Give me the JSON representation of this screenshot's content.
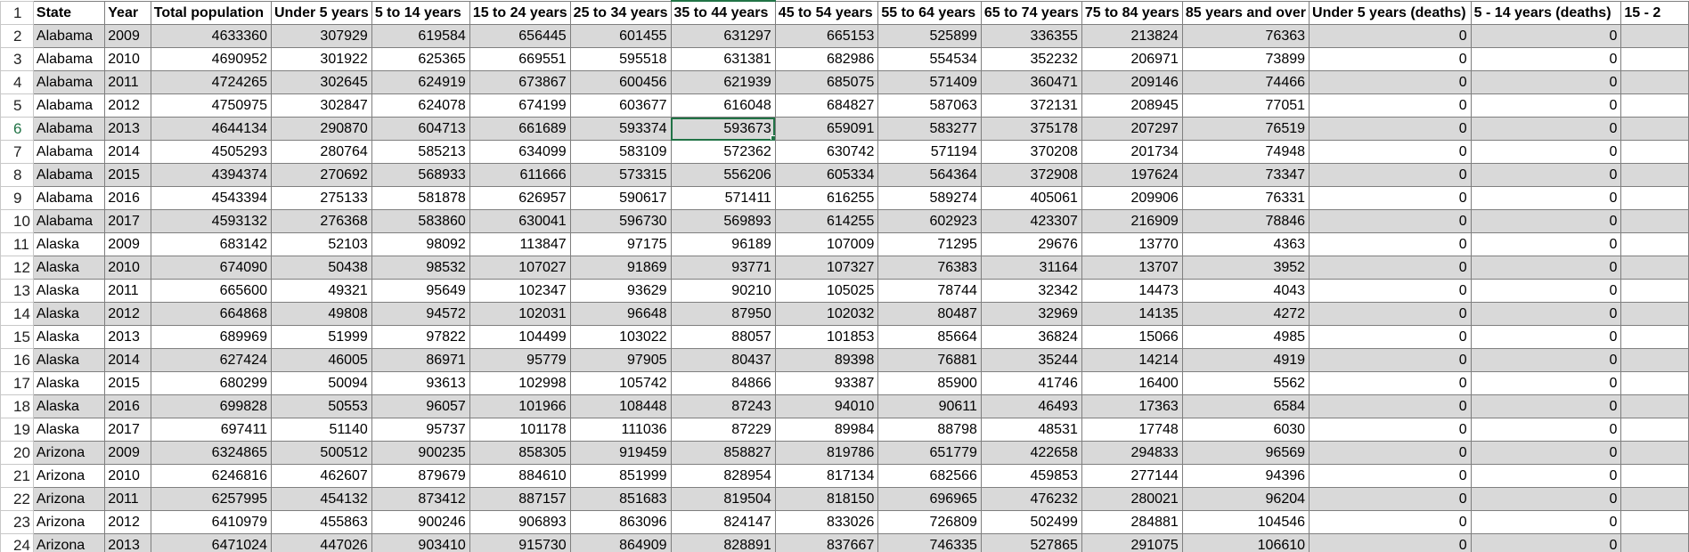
{
  "sheet": {
    "headers": [
      "State",
      "Year",
      "Total population",
      "Under 5 years",
      "5 to 14 years",
      "15 to 24 years",
      "25 to 34 years",
      "35 to 44 years",
      "45 to 54 years",
      "55 to 64 years",
      "65 to 74 years",
      "75 to 84 years",
      "85 years and over",
      "Under 5 years (deaths)",
      "5 - 14 years (deaths)",
      "15 - 2"
    ],
    "rows": [
      [
        "Alabama",
        "2009",
        "4633360",
        "307929",
        "619584",
        "656445",
        "601455",
        "631297",
        "665153",
        "525899",
        "336355",
        "213824",
        "76363",
        "0",
        "0",
        ""
      ],
      [
        "Alabama",
        "2010",
        "4690952",
        "301922",
        "625365",
        "669551",
        "595518",
        "631381",
        "682986",
        "554534",
        "352232",
        "206971",
        "73899",
        "0",
        "0",
        ""
      ],
      [
        "Alabama",
        "2011",
        "4724265",
        "302645",
        "624919",
        "673867",
        "600456",
        "621939",
        "685075",
        "571409",
        "360471",
        "209146",
        "74466",
        "0",
        "0",
        ""
      ],
      [
        "Alabama",
        "2012",
        "4750975",
        "302847",
        "624078",
        "674199",
        "603677",
        "616048",
        "684827",
        "587063",
        "372131",
        "208945",
        "77051",
        "0",
        "0",
        ""
      ],
      [
        "Alabama",
        "2013",
        "4644134",
        "290870",
        "604713",
        "661689",
        "593374",
        "593673",
        "659091",
        "583277",
        "375178",
        "207297",
        "76519",
        "0",
        "0",
        ""
      ],
      [
        "Alabama",
        "2014",
        "4505293",
        "280764",
        "585213",
        "634099",
        "583109",
        "572362",
        "630742",
        "571194",
        "370208",
        "201734",
        "74948",
        "0",
        "0",
        ""
      ],
      [
        "Alabama",
        "2015",
        "4394374",
        "270692",
        "568933",
        "611666",
        "573315",
        "556206",
        "605334",
        "564364",
        "372908",
        "197624",
        "73347",
        "0",
        "0",
        ""
      ],
      [
        "Alabama",
        "2016",
        "4543394",
        "275133",
        "581878",
        "626957",
        "590617",
        "571411",
        "616255",
        "589274",
        "405061",
        "209906",
        "76331",
        "0",
        "0",
        ""
      ],
      [
        "Alabama",
        "2017",
        "4593132",
        "276368",
        "583860",
        "630041",
        "596730",
        "569893",
        "614255",
        "602923",
        "423307",
        "216909",
        "78846",
        "0",
        "0",
        ""
      ],
      [
        "Alaska",
        "2009",
        "683142",
        "52103",
        "98092",
        "113847",
        "97175",
        "96189",
        "107009",
        "71295",
        "29676",
        "13770",
        "4363",
        "0",
        "0",
        ""
      ],
      [
        "Alaska",
        "2010",
        "674090",
        "50438",
        "98532",
        "107027",
        "91869",
        "93771",
        "107327",
        "76383",
        "31164",
        "13707",
        "3952",
        "0",
        "0",
        ""
      ],
      [
        "Alaska",
        "2011",
        "665600",
        "49321",
        "95649",
        "102347",
        "93629",
        "90210",
        "105025",
        "78744",
        "32342",
        "14473",
        "4043",
        "0",
        "0",
        ""
      ],
      [
        "Alaska",
        "2012",
        "664868",
        "49808",
        "94572",
        "102031",
        "96648",
        "87950",
        "102032",
        "80487",
        "32969",
        "14135",
        "4272",
        "0",
        "0",
        ""
      ],
      [
        "Alaska",
        "2013",
        "689969",
        "51999",
        "97822",
        "104499",
        "103022",
        "88057",
        "101853",
        "85664",
        "36824",
        "15066",
        "4985",
        "0",
        "0",
        ""
      ],
      [
        "Alaska",
        "2014",
        "627424",
        "46005",
        "86971",
        "95779",
        "97905",
        "80437",
        "89398",
        "76881",
        "35244",
        "14214",
        "4919",
        "0",
        "0",
        ""
      ],
      [
        "Alaska",
        "2015",
        "680299",
        "50094",
        "93613",
        "102998",
        "105742",
        "84866",
        "93387",
        "85900",
        "41746",
        "16400",
        "5562",
        "0",
        "0",
        ""
      ],
      [
        "Alaska",
        "2016",
        "699828",
        "50553",
        "96057",
        "101966",
        "108448",
        "87243",
        "94010",
        "90611",
        "46493",
        "17363",
        "6584",
        "0",
        "0",
        ""
      ],
      [
        "Alaska",
        "2017",
        "697411",
        "51140",
        "95737",
        "101178",
        "111036",
        "87229",
        "89984",
        "88798",
        "48531",
        "17748",
        "6030",
        "0",
        "0",
        ""
      ],
      [
        "Arizona",
        "2009",
        "6324865",
        "500512",
        "900235",
        "858305",
        "919459",
        "858827",
        "819786",
        "651779",
        "422658",
        "294833",
        "96569",
        "0",
        "0",
        ""
      ],
      [
        "Arizona",
        "2010",
        "6246816",
        "462607",
        "879679",
        "884610",
        "851999",
        "828954",
        "817134",
        "682566",
        "459853",
        "277144",
        "94396",
        "0",
        "0",
        ""
      ],
      [
        "Arizona",
        "2011",
        "6257995",
        "454132",
        "873412",
        "887157",
        "851683",
        "819504",
        "818150",
        "696965",
        "476232",
        "280021",
        "96204",
        "0",
        "0",
        ""
      ],
      [
        "Arizona",
        "2012",
        "6410979",
        "455863",
        "900246",
        "906893",
        "863096",
        "824147",
        "833026",
        "726809",
        "502499",
        "284881",
        "104546",
        "0",
        "0",
        ""
      ],
      [
        "Arizona",
        "2013",
        "6471024",
        "447026",
        "903410",
        "915730",
        "864909",
        "828891",
        "837667",
        "746335",
        "527865",
        "291075",
        "106610",
        "0",
        "0",
        ""
      ]
    ]
  }
}
